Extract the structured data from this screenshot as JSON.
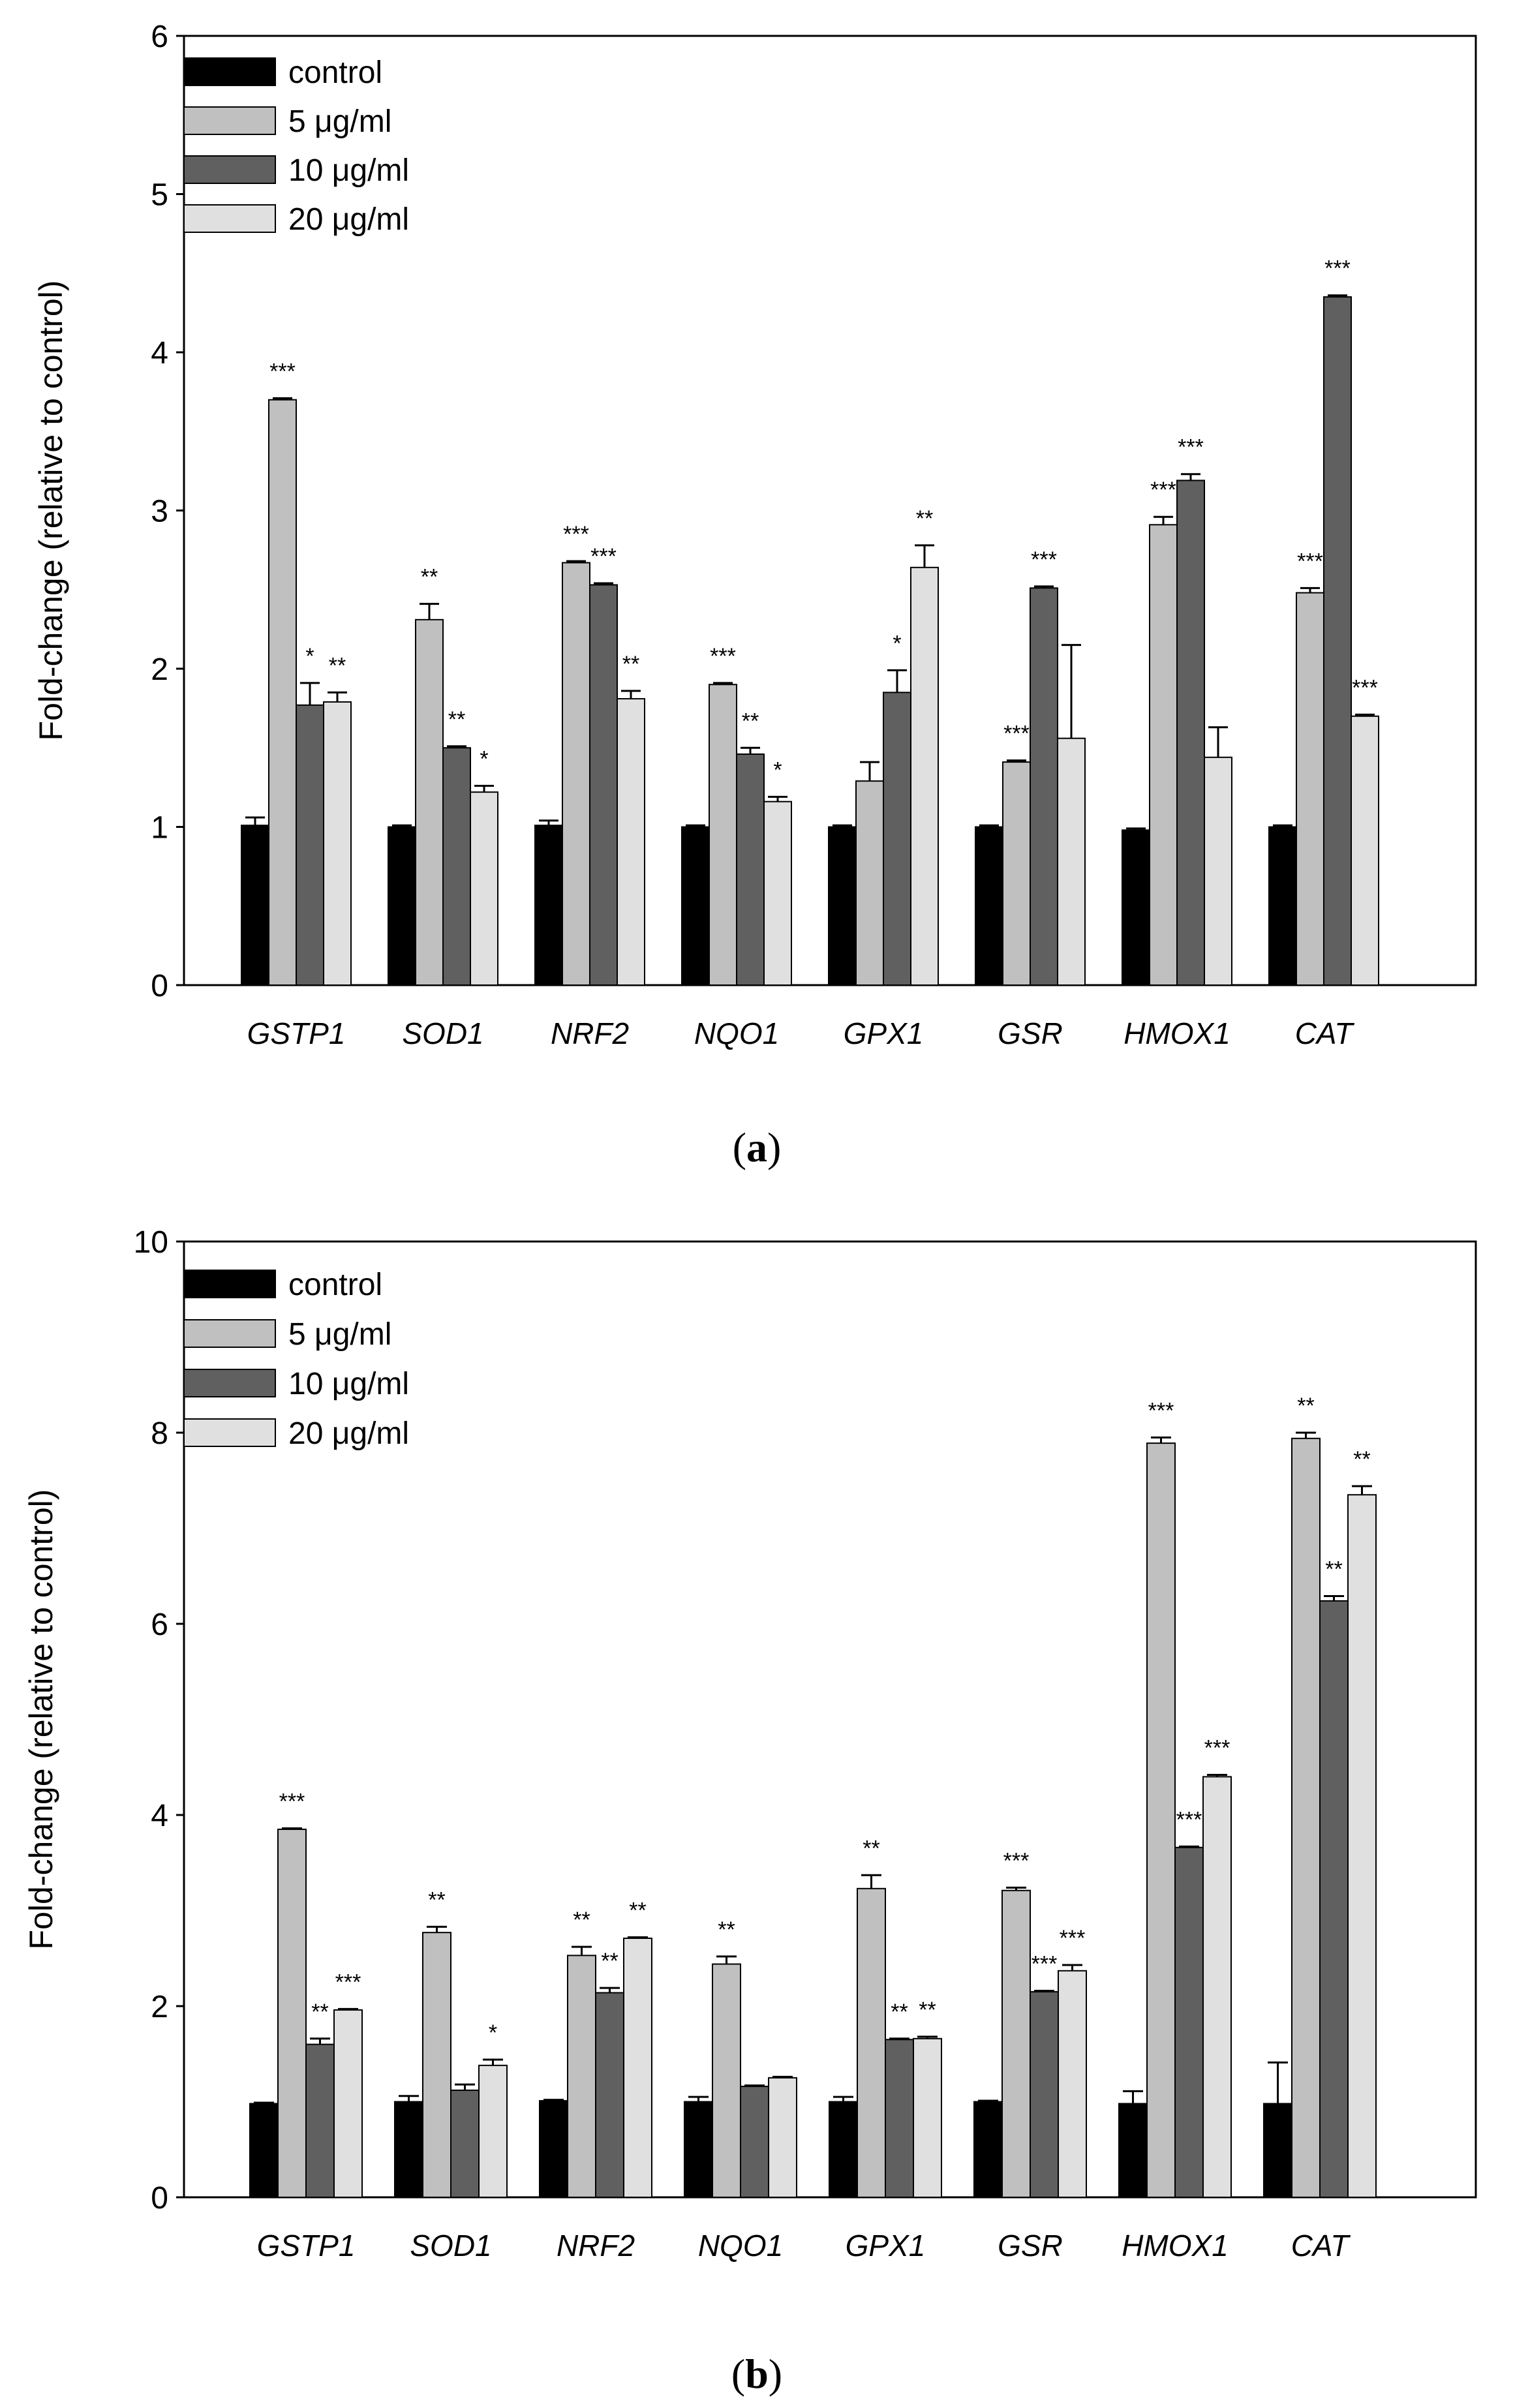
{
  "chart_data": [
    {
      "type": "bar",
      "panel": "(a)",
      "panel_letter": "a",
      "ylabel": "Fold-change (relative to control)",
      "xlabel": "",
      "ylim": [
        0,
        6
      ],
      "yticks": [
        "0",
        "1",
        "2",
        "3",
        "4",
        "5",
        "6"
      ],
      "categories": [
        "GSTP1",
        "SOD1",
        "NRF2",
        "NQO1",
        "GPX1",
        "GSR",
        "HMOX1",
        "CAT"
      ],
      "legend_position": "top-left",
      "series": [
        {
          "name": "control",
          "color": "#000000",
          "values": [
            1.01,
            1.0,
            1.01,
            1.0,
            1.0,
            1.0,
            0.98,
            1.0
          ],
          "errors": [
            0.05,
            0.01,
            0.03,
            0.01,
            0.01,
            0.01,
            0.01,
            0.01
          ],
          "significance": [
            "",
            "",
            "",
            "",
            "",
            "",
            "",
            ""
          ]
        },
        {
          "name": "5 μg/ml",
          "color": "#c0c0c0",
          "values": [
            3.7,
            2.31,
            2.67,
            1.9,
            1.29,
            1.41,
            2.91,
            2.48
          ],
          "errors": [
            0.01,
            0.1,
            0.01,
            0.01,
            0.12,
            0.01,
            0.05,
            0.03
          ],
          "significance": [
            "***",
            "**",
            "***",
            "***",
            "",
            "***",
            "***",
            "***"
          ]
        },
        {
          "name": "10 μg/ml",
          "color": "#606060",
          "values": [
            1.77,
            1.5,
            2.53,
            1.46,
            1.85,
            2.51,
            3.19,
            4.35
          ],
          "errors": [
            0.14,
            0.01,
            0.01,
            0.04,
            0.14,
            0.01,
            0.04,
            0.01
          ],
          "significance": [
            "*",
            "**",
            "***",
            "**",
            "*",
            "***",
            "***",
            "***"
          ]
        },
        {
          "name": "20 μg/ml",
          "color": "#e0e0e0",
          "values": [
            1.79,
            1.22,
            1.81,
            1.16,
            2.64,
            1.56,
            1.44,
            1.7
          ],
          "errors": [
            0.06,
            0.04,
            0.05,
            0.03,
            0.14,
            0.59,
            0.19,
            0.01
          ],
          "significance": [
            "**",
            "*",
            "**",
            "*",
            "**",
            "",
            "",
            "***"
          ]
        }
      ]
    },
    {
      "type": "bar",
      "panel": "(b)",
      "panel_letter": "b",
      "ylabel": "Fold-change (relative to control)",
      "xlabel": "",
      "ylim": [
        0,
        10
      ],
      "yticks": [
        "0",
        "2",
        "4",
        "6",
        "8",
        "10"
      ],
      "categories": [
        "GSTP1",
        "SOD1",
        "NRF2",
        "NQO1",
        "GPX1",
        "GSR",
        "HMOX1",
        "CAT"
      ],
      "legend_position": "top-left",
      "series": [
        {
          "name": "control",
          "color": "#000000",
          "values": [
            0.98,
            1.0,
            1.01,
            1.0,
            1.0,
            1.0,
            0.98,
            0.98
          ],
          "errors": [
            0.01,
            0.06,
            0.01,
            0.05,
            0.05,
            0.01,
            0.13,
            0.43
          ],
          "significance": [
            "",
            "",
            "",
            "",
            "",
            "",
            "",
            ""
          ]
        },
        {
          "name": "5 μg/ml",
          "color": "#c0c0c0",
          "values": [
            3.85,
            2.77,
            2.53,
            2.44,
            3.23,
            3.21,
            7.89,
            7.94
          ],
          "errors": [
            0.01,
            0.06,
            0.09,
            0.08,
            0.14,
            0.03,
            0.06,
            0.06
          ],
          "significance": [
            "***",
            "**",
            "**",
            "**",
            "**",
            "***",
            "***",
            "**"
          ]
        },
        {
          "name": "10 μg/ml",
          "color": "#606060",
          "values": [
            1.6,
            1.12,
            2.14,
            1.16,
            1.65,
            2.15,
            3.66,
            6.24
          ],
          "errors": [
            0.06,
            0.06,
            0.05,
            0.01,
            0.01,
            0.01,
            0.01,
            0.05
          ],
          "significance": [
            "**",
            "",
            "**",
            "",
            "**",
            "***",
            "***",
            "**"
          ]
        },
        {
          "name": "20 μg/ml",
          "color": "#e0e0e0",
          "values": [
            1.96,
            1.38,
            2.71,
            1.25,
            1.66,
            2.37,
            4.4,
            7.35
          ],
          "errors": [
            0.01,
            0.06,
            0.01,
            0.01,
            0.02,
            0.06,
            0.02,
            0.09
          ],
          "significance": [
            "***",
            "*",
            "**",
            "",
            "**",
            "***",
            "***",
            "**"
          ]
        }
      ]
    }
  ]
}
